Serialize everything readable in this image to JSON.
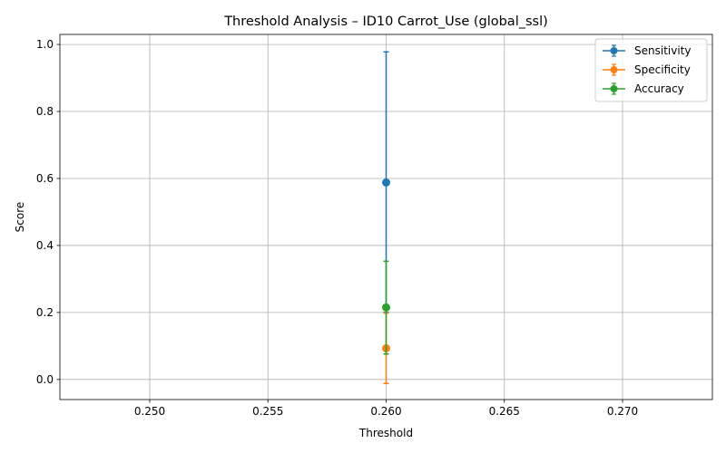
{
  "chart_data": {
    "type": "scatter",
    "title": "Threshold Analysis – ID10 Carrot_Use (global_ssl)",
    "xlabel": "Threshold",
    "ylabel": "Score",
    "xlim": [
      0.2462,
      0.2738
    ],
    "ylim": [
      -0.06,
      1.03
    ],
    "xticks": [
      0.25,
      0.255,
      0.26,
      0.265,
      0.27
    ],
    "xtick_labels": [
      "0.250",
      "0.255",
      "0.260",
      "0.265",
      "0.270"
    ],
    "yticks": [
      0.0,
      0.2,
      0.4,
      0.6,
      0.8,
      1.0
    ],
    "ytick_labels": [
      "0.0",
      "0.2",
      "0.4",
      "0.6",
      "0.8",
      "1.0"
    ],
    "grid": true,
    "legend_position": "top-right",
    "series": [
      {
        "name": "Sensitivity",
        "color": "#1f77b4",
        "x": [
          0.26
        ],
        "y": [
          0.588
        ],
        "err_low": [
          0.2
        ],
        "err_high": [
          0.978
        ]
      },
      {
        "name": "Specificity",
        "color": "#ff7f0e",
        "x": [
          0.26
        ],
        "y": [
          0.093
        ],
        "err_low": [
          -0.012
        ],
        "err_high": [
          0.198
        ]
      },
      {
        "name": "Accuracy",
        "color": "#2ca02c",
        "x": [
          0.26
        ],
        "y": [
          0.215
        ],
        "err_low": [
          0.076
        ],
        "err_high": [
          0.353
        ]
      }
    ]
  }
}
